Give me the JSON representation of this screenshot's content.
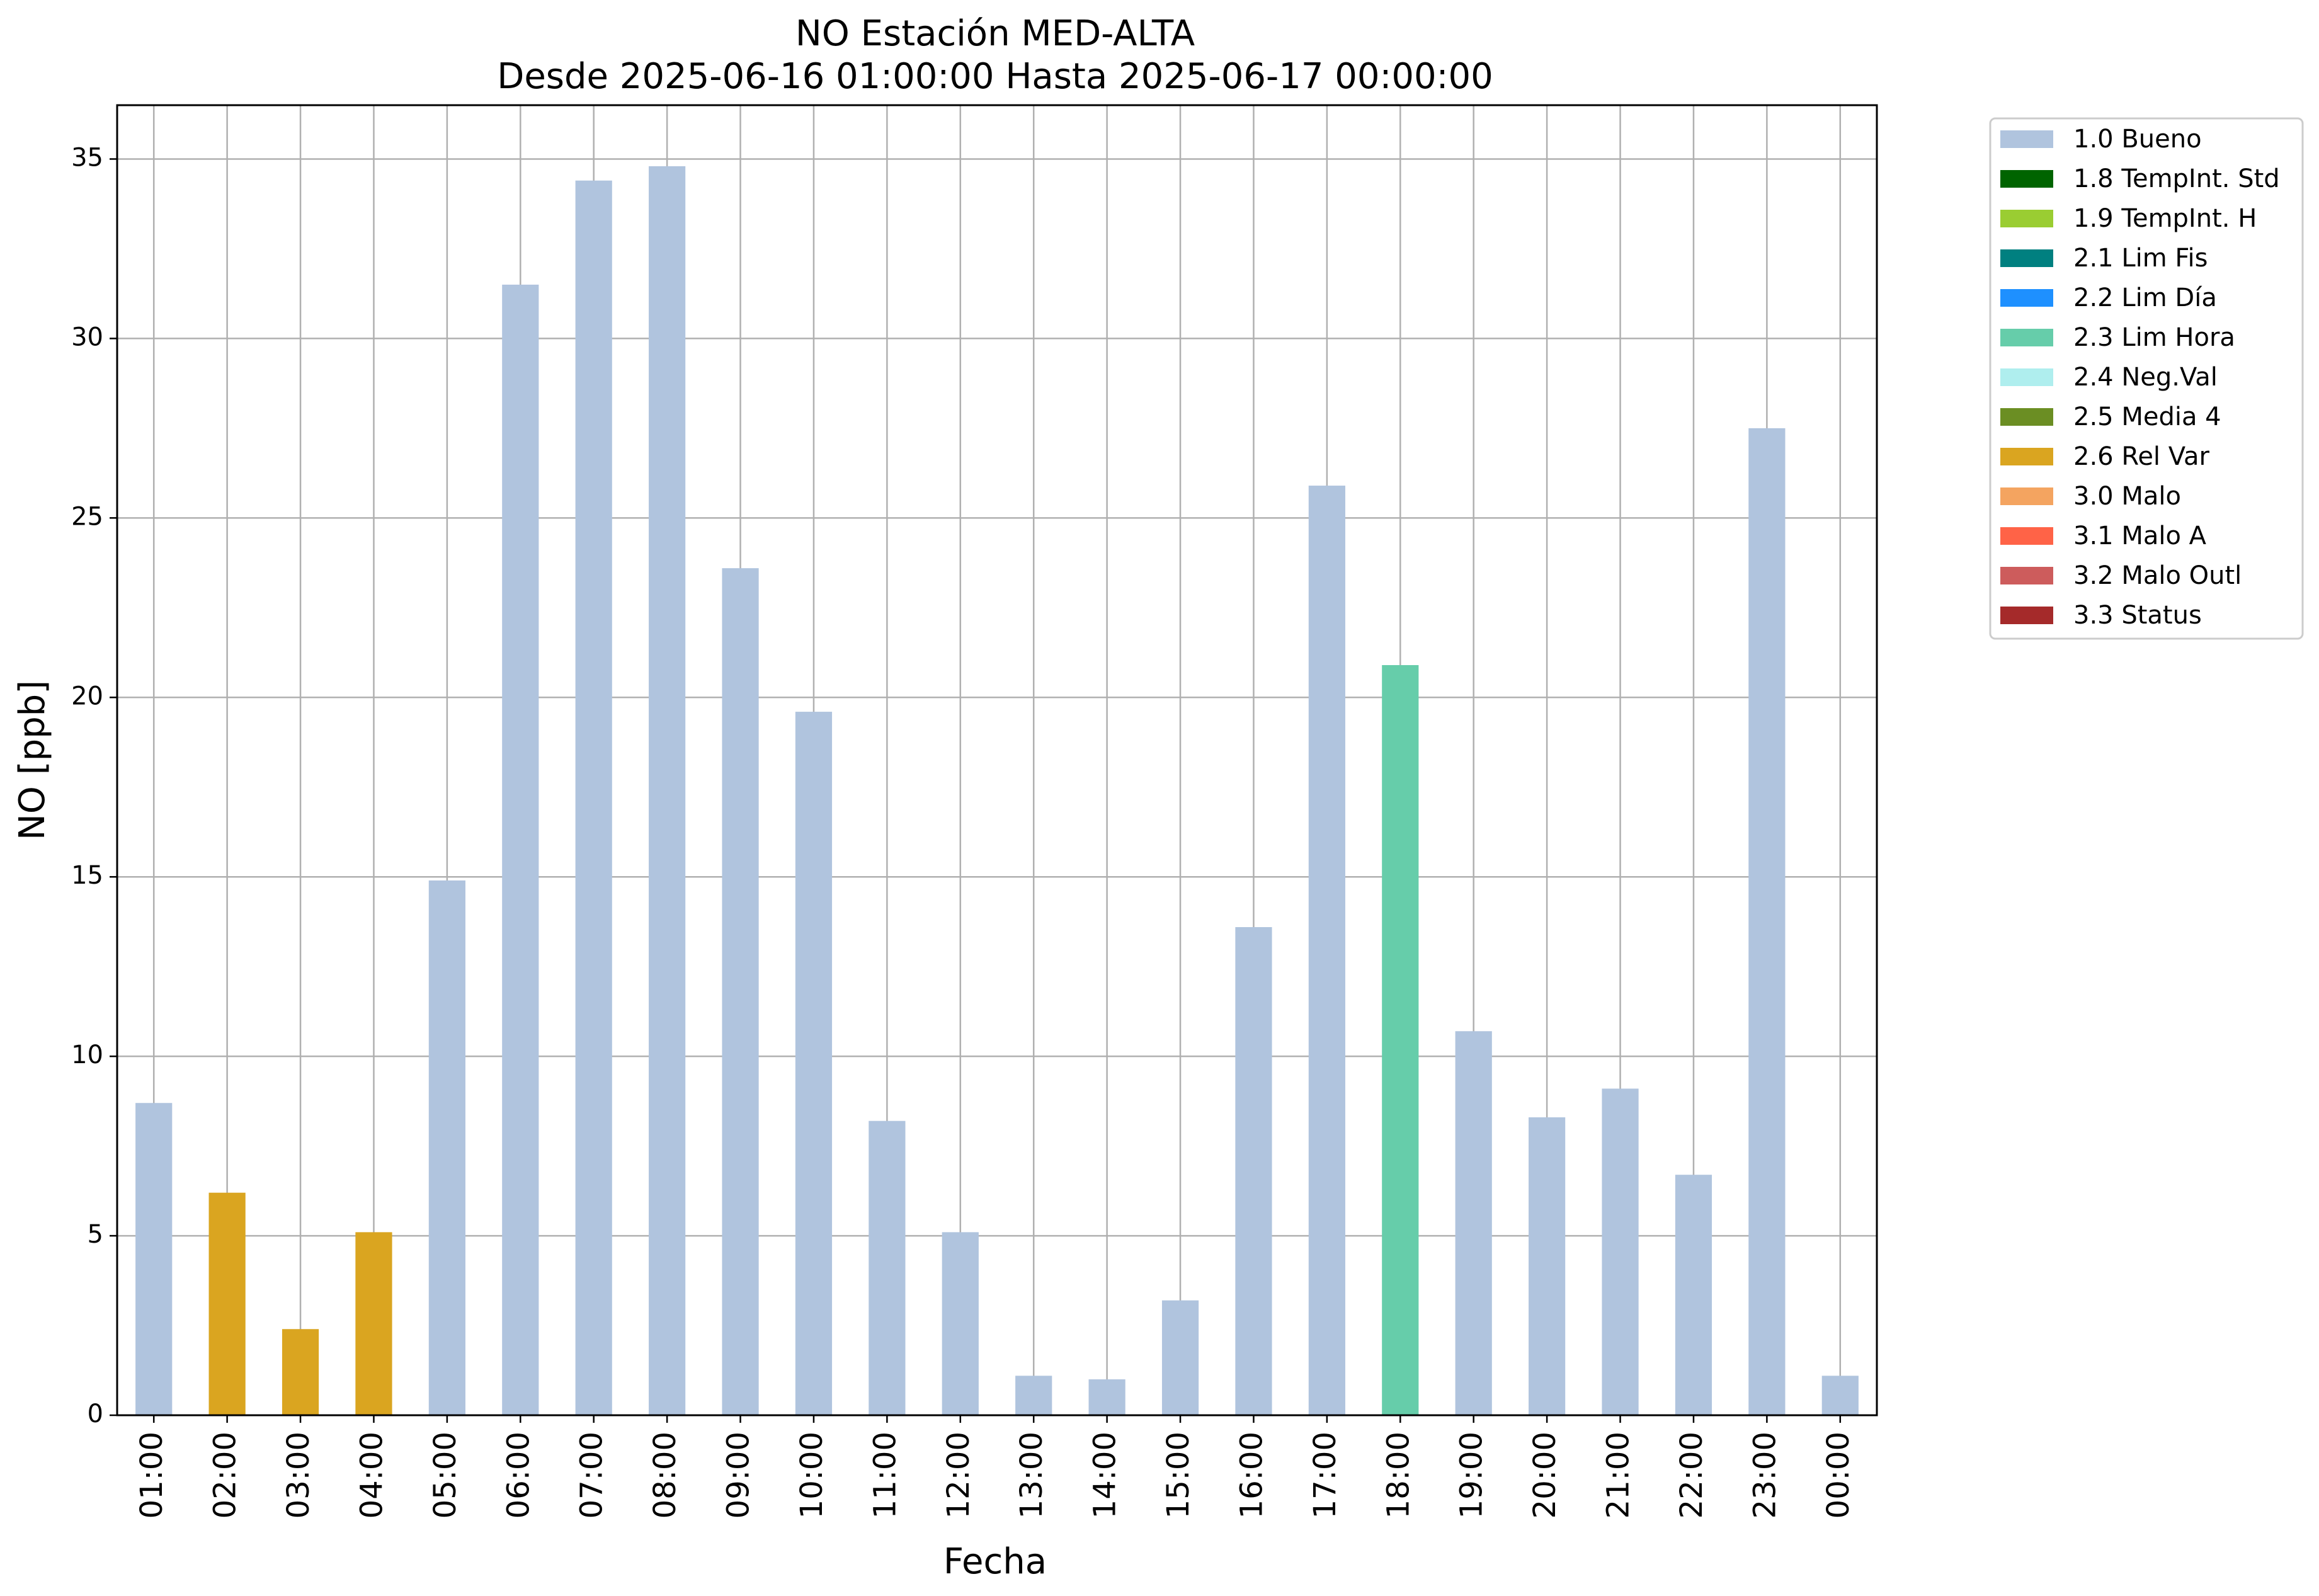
{
  "chart_data": {
    "type": "bar",
    "title": "NO Estación MED-ALTA",
    "subtitle": "Desde 2025-06-16 01:00:00 Hasta 2025-06-17 00:00:00",
    "xlabel": "Fecha",
    "ylabel": "NO [ppb]",
    "ylim": [
      0,
      36.5
    ],
    "yticks": [
      0,
      5,
      10,
      15,
      20,
      25,
      30,
      35
    ],
    "grid": true,
    "legend_position": "outside-top-right",
    "categories": [
      "01:00",
      "02:00",
      "03:00",
      "04:00",
      "05:00",
      "06:00",
      "07:00",
      "08:00",
      "09:00",
      "10:00",
      "11:00",
      "12:00",
      "13:00",
      "14:00",
      "15:00",
      "16:00",
      "17:00",
      "18:00",
      "19:00",
      "20:00",
      "21:00",
      "22:00",
      "23:00",
      "00:00"
    ],
    "values": [
      8.7,
      6.2,
      2.4,
      5.1,
      14.9,
      31.5,
      34.4,
      34.8,
      23.6,
      19.6,
      8.2,
      5.1,
      1.1,
      1.0,
      3.2,
      13.6,
      25.9,
      20.9,
      10.7,
      8.3,
      9.1,
      6.7,
      27.5,
      1.1
    ],
    "flags": [
      "1.0 Bueno",
      "2.6 Rel Var",
      "2.6 Rel Var",
      "2.6 Rel Var",
      "1.0 Bueno",
      "1.0 Bueno",
      "1.0 Bueno",
      "1.0 Bueno",
      "1.0 Bueno",
      "1.0 Bueno",
      "1.0 Bueno",
      "1.0 Bueno",
      "1.0 Bueno",
      "1.0 Bueno",
      "1.0 Bueno",
      "1.0 Bueno",
      "1.0 Bueno",
      "2.3 Lim Hora",
      "1.0 Bueno",
      "1.0 Bueno",
      "1.0 Bueno",
      "1.0 Bueno",
      "1.0 Bueno",
      "1.0 Bueno"
    ],
    "legend": [
      {
        "label": "1.0 Bueno",
        "color": "#b0c4de"
      },
      {
        "label": "1.8 TempInt. Std",
        "color": "#006400"
      },
      {
        "label": "1.9 TempInt. H",
        "color": "#9acd32"
      },
      {
        "label": "2.1 Lim Fis",
        "color": "#008080"
      },
      {
        "label": "2.2 Lim Día",
        "color": "#1e90ff"
      },
      {
        "label": "2.3 Lim Hora",
        "color": "#66cdaa"
      },
      {
        "label": "2.4 Neg.Val",
        "color": "#afeeee"
      },
      {
        "label": "2.5 Media 4",
        "color": "#6b8e23"
      },
      {
        "label": "2.6 Rel Var",
        "color": "#daa520"
      },
      {
        "label": "3.0 Malo",
        "color": "#f4a460"
      },
      {
        "label": "3.1 Malo A",
        "color": "#ff6347"
      },
      {
        "label": "3.2 Malo Outl",
        "color": "#cd5c5c"
      },
      {
        "label": "3.3 Status",
        "color": "#a52a2a"
      }
    ]
  }
}
